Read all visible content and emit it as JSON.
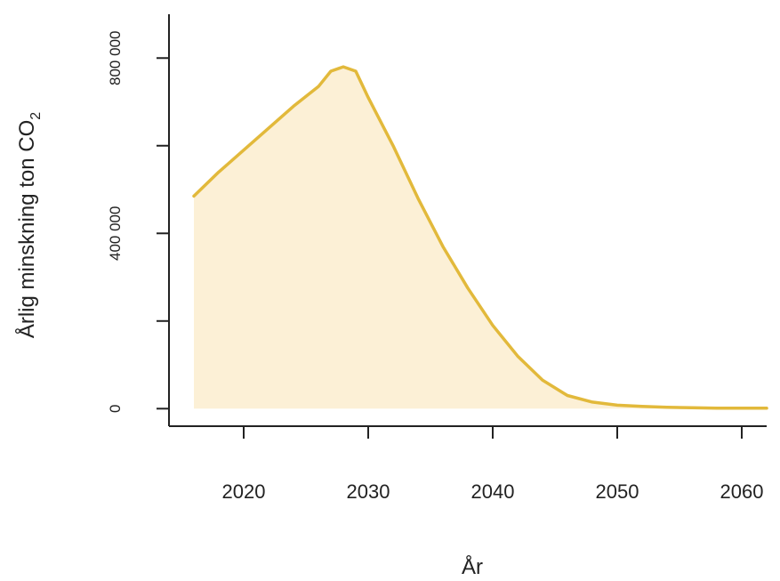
{
  "chart_data": {
    "type": "area",
    "xlabel": "År",
    "ylabel": "Årlig minskning ton CO",
    "ylabel_subscript": "2",
    "xlim": [
      2014,
      2062
    ],
    "ylim": [
      -40000,
      900000
    ],
    "x_ticks": [
      2020,
      2030,
      2040,
      2050,
      2060
    ],
    "x_tick_labels": [
      "2020",
      "2030",
      "2040",
      "2050",
      "2060"
    ],
    "y_ticks": [
      0,
      200000,
      400000,
      600000,
      800000
    ],
    "y_tick_labels": [
      "0",
      "",
      "400 000",
      "",
      "800 000"
    ],
    "grid": false,
    "colors": {
      "line": "#e2b93b",
      "fill": "#fcf0d6",
      "axis": "#222222"
    },
    "series": [
      {
        "x": [
          2016,
          2018,
          2020,
          2022,
          2024,
          2026,
          2027,
          2028,
          2029,
          2030,
          2032,
          2034,
          2036,
          2038,
          2040,
          2042,
          2044,
          2046,
          2048,
          2050,
          2052,
          2054,
          2056,
          2058,
          2060,
          2062
        ],
        "values": [
          485000,
          540000,
          590000,
          640000,
          690000,
          735000,
          770000,
          780000,
          770000,
          710000,
          600000,
          480000,
          370000,
          275000,
          190000,
          120000,
          65000,
          30000,
          15000,
          8000,
          5000,
          3000,
          2000,
          1000,
          1000,
          1000
        ]
      }
    ]
  }
}
